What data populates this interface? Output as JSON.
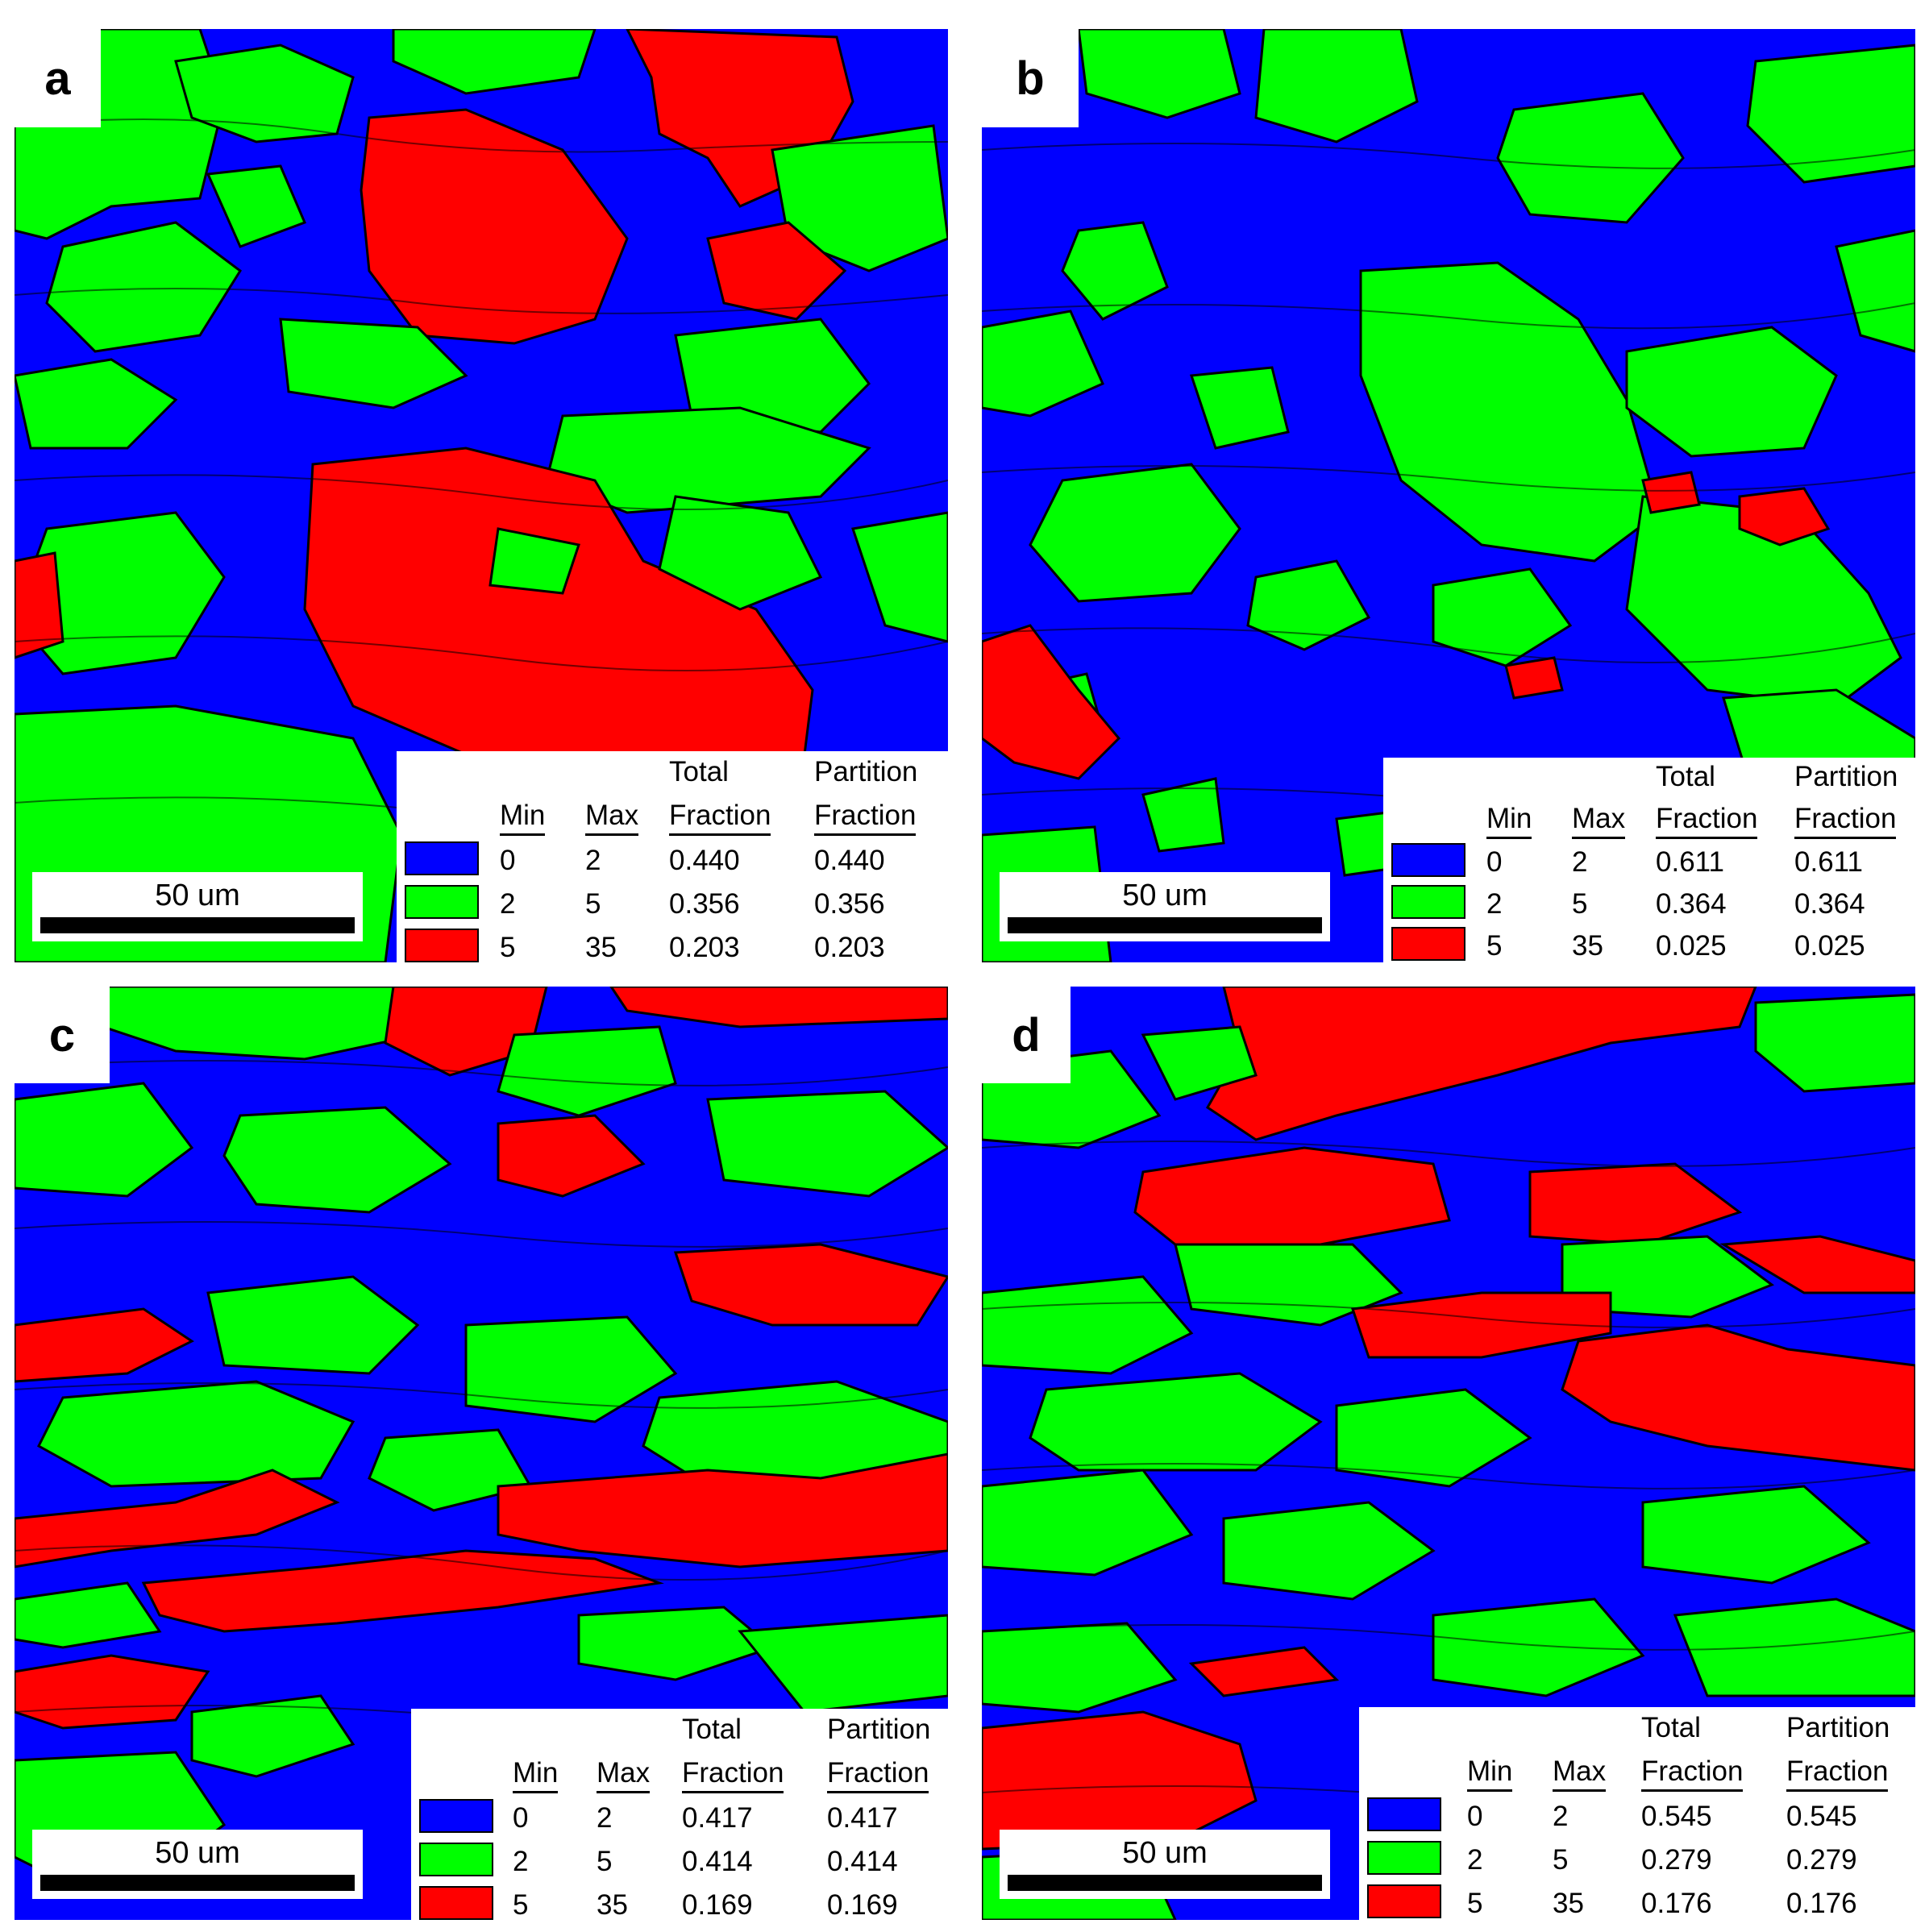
{
  "scale_label": "50 um",
  "colors": {
    "blue": "#0000ff",
    "green": "#00ff00",
    "red": "#ff0000",
    "boundary": "#000000"
  },
  "legend_headers": {
    "min": "Min",
    "max": "Max",
    "total_line1": "Total",
    "total_line2": "Fraction",
    "partition_line1": "Partition",
    "partition_line2": "Fraction"
  },
  "panels": [
    {
      "letter": "a",
      "rows": [
        {
          "color": "blue",
          "min": "0",
          "max": "2",
          "total": "0.440",
          "partition": "0.440"
        },
        {
          "color": "green",
          "min": "2",
          "max": "5",
          "total": "0.356",
          "partition": "0.356"
        },
        {
          "color": "red",
          "min": "5",
          "max": "35",
          "total": "0.203",
          "partition": "0.203"
        }
      ]
    },
    {
      "letter": "b",
      "rows": [
        {
          "color": "blue",
          "min": "0",
          "max": "2",
          "total": "0.611",
          "partition": "0.611"
        },
        {
          "color": "green",
          "min": "2",
          "max": "5",
          "total": "0.364",
          "partition": "0.364"
        },
        {
          "color": "red",
          "min": "5",
          "max": "35",
          "total": "0.025",
          "partition": "0.025"
        }
      ]
    },
    {
      "letter": "c",
      "rows": [
        {
          "color": "blue",
          "min": "0",
          "max": "2",
          "total": "0.417",
          "partition": "0.417"
        },
        {
          "color": "green",
          "min": "2",
          "max": "5",
          "total": "0.414",
          "partition": "0.414"
        },
        {
          "color": "red",
          "min": "5",
          "max": "35",
          "total": "0.169",
          "partition": "0.169"
        }
      ]
    },
    {
      "letter": "d",
      "rows": [
        {
          "color": "blue",
          "min": "0",
          "max": "2",
          "total": "0.545",
          "partition": "0.545"
        },
        {
          "color": "green",
          "min": "2",
          "max": "5",
          "total": "0.279",
          "partition": "0.279"
        },
        {
          "color": "red",
          "min": "5",
          "max": "35",
          "total": "0.176",
          "partition": "0.176"
        }
      ]
    }
  ]
}
